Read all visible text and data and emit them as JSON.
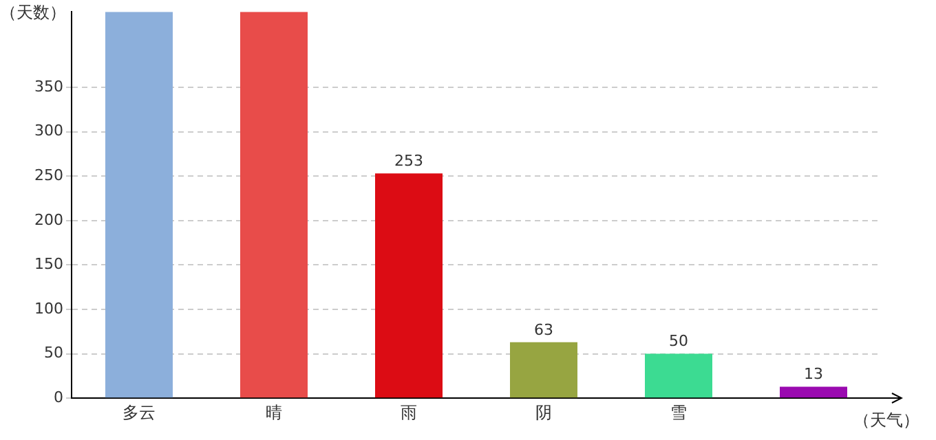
{
  "chart_data": {
    "type": "bar",
    "ylabel": "（天数）",
    "xlabel": "（天气）",
    "categories": [
      "多云",
      "晴",
      "雨",
      "阴",
      "雪",
      null
    ],
    "values": [
      435,
      435,
      253,
      63,
      50,
      13
    ],
    "value_labels": [
      null,
      null,
      "253",
      "63",
      "50",
      "13"
    ],
    "colors": [
      "#8cafdb",
      "#e84c4a",
      "#dc0c14",
      "#97a541",
      "#3cdb92",
      "#9a0ab0"
    ],
    "ylim": [
      0,
      435
    ],
    "yticks": [
      0,
      50,
      100,
      150,
      200,
      250,
      300,
      350
    ],
    "grid": "y",
    "legend": false
  }
}
